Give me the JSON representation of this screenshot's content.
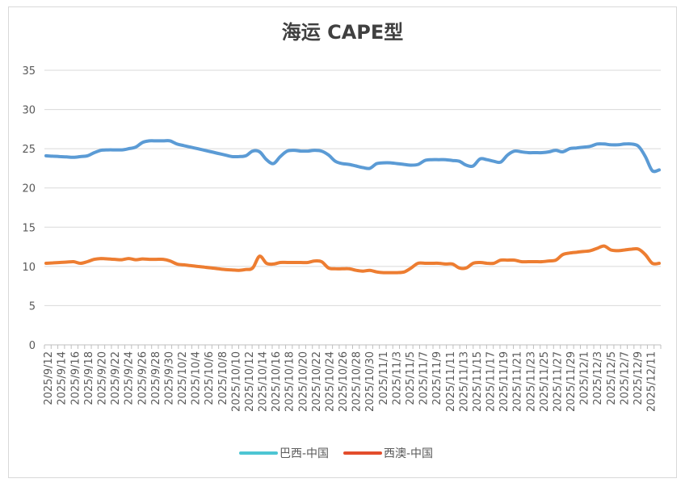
{
  "chart_data": {
    "type": "line",
    "title": "海运 CAPE型",
    "xlabel": "",
    "ylabel": "",
    "ylim": [
      0,
      35
    ],
    "yticks": [
      0,
      5,
      10,
      15,
      20,
      25,
      30,
      35
    ],
    "x_tick_labels": [
      "2025/9/12",
      "2025/9/14",
      "2025/9/16",
      "2025/9/18",
      "2025/9/20",
      "2025/9/22",
      "2025/9/24",
      "2025/9/26",
      "2025/9/28",
      "2025/9/30",
      "2025/10/2",
      "2025/10/4",
      "2025/10/6",
      "2025/10/8",
      "2025/10/10",
      "2025/10/12",
      "2025/10/14",
      "2025/10/16",
      "2025/10/18",
      "2025/10/20",
      "2025/10/22",
      "2025/10/24",
      "2025/10/26",
      "2025/10/28",
      "2025/10/30",
      "2025/11/1",
      "2025/11/3",
      "2025/11/5",
      "2025/11/7",
      "2025/11/9",
      "2025/11/11",
      "2025/11/13",
      "2025/11/15",
      "2025/11/17",
      "2025/11/19",
      "2025/11/21",
      "2025/11/23",
      "2025/11/25",
      "2025/11/27",
      "2025/11/29",
      "2025/12/1",
      "2025/12/3",
      "2025/12/5",
      "2025/12/7",
      "2025/12/9",
      "2025/12/11"
    ],
    "legend_position": "bottom",
    "grid": true,
    "series": [
      {
        "name": "巴西-中国",
        "color": "#5b9bd5",
        "legend_color": "#4dc5d3",
        "values": [
          24.1,
          24.05,
          24.0,
          23.95,
          23.9,
          24.0,
          24.1,
          24.5,
          24.8,
          24.85,
          24.85,
          24.85,
          25.0,
          25.2,
          25.8,
          26.0,
          26.0,
          26.0,
          26.0,
          25.6,
          25.4,
          25.2,
          25.0,
          24.8,
          24.6,
          24.4,
          24.2,
          24.0,
          24.0,
          24.1,
          24.7,
          24.6,
          23.6,
          23.1,
          24.0,
          24.7,
          24.8,
          24.7,
          24.7,
          24.8,
          24.7,
          24.2,
          23.4,
          23.1,
          23.0,
          22.8,
          22.6,
          22.5,
          23.1,
          23.2,
          23.2,
          23.1,
          23.0,
          22.9,
          23.0,
          23.5,
          23.6,
          23.6,
          23.6,
          23.5,
          23.4,
          22.9,
          22.8,
          23.7,
          23.6,
          23.4,
          23.3,
          24.2,
          24.7,
          24.6,
          24.5,
          24.5,
          24.5,
          24.6,
          24.8,
          24.6,
          25.0,
          25.1,
          25.2,
          25.3,
          25.6,
          25.6,
          25.5,
          25.5,
          25.6,
          25.6,
          25.3,
          24.0,
          22.2,
          22.3
        ]
      },
      {
        "name": "西澳-中国",
        "color": "#ed7d31",
        "legend_color": "#e34d2c",
        "values": [
          10.4,
          10.45,
          10.5,
          10.55,
          10.6,
          10.4,
          10.6,
          10.9,
          11.0,
          10.95,
          10.9,
          10.85,
          11.0,
          10.85,
          10.95,
          10.9,
          10.9,
          10.9,
          10.7,
          10.3,
          10.2,
          10.1,
          10.0,
          9.9,
          9.8,
          9.7,
          9.6,
          9.55,
          9.5,
          9.6,
          9.8,
          11.3,
          10.4,
          10.3,
          10.5,
          10.5,
          10.5,
          10.5,
          10.5,
          10.7,
          10.6,
          9.8,
          9.7,
          9.7,
          9.7,
          9.5,
          9.4,
          9.5,
          9.3,
          9.2,
          9.2,
          9.2,
          9.3,
          9.8,
          10.4,
          10.4,
          10.4,
          10.4,
          10.3,
          10.3,
          9.8,
          9.8,
          10.4,
          10.5,
          10.4,
          10.4,
          10.8,
          10.8,
          10.8,
          10.6,
          10.6,
          10.6,
          10.6,
          10.7,
          10.8,
          11.5,
          11.7,
          11.8,
          11.9,
          12.0,
          12.3,
          12.6,
          12.1,
          12.0,
          12.1,
          12.2,
          12.2,
          11.5,
          10.4,
          10.4
        ]
      }
    ]
  }
}
